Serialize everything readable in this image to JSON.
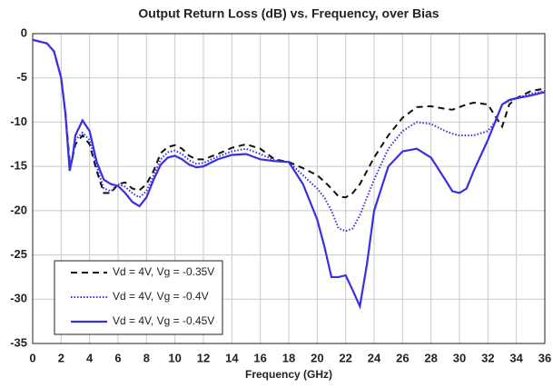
{
  "chart_data": {
    "type": "line",
    "title": "Output Return Loss (dB) vs. Frequency, over Bias",
    "x_label": "Frequency (GHz)",
    "x": [
      0,
      0.5,
      1,
      1.5,
      2,
      2.3,
      2.6,
      2.8,
      3,
      3.5,
      4,
      4.5,
      5,
      5.5,
      6,
      6.5,
      7,
      7.5,
      8,
      8.5,
      9,
      9.5,
      10,
      10.5,
      11,
      11.5,
      12,
      13,
      14,
      15,
      16,
      17,
      18,
      19,
      20,
      20.5,
      21,
      21.5,
      22,
      22.5,
      23,
      23.5,
      24,
      25,
      26,
      27,
      28,
      29,
      29.5,
      30,
      30.5,
      31,
      32,
      32.5,
      33,
      33.5,
      34,
      35,
      36
    ],
    "series": [
      {
        "name": "Vd = 4V, Vg = -0.35V",
        "color": "#111111",
        "dash": "dashed",
        "values": [
          -0.7,
          -0.9,
          -1.1,
          -2,
          -5,
          -9,
          -14.5,
          -14,
          -12.5,
          -11.5,
          -12.5,
          -15.5,
          -18,
          -18,
          -17,
          -16.8,
          -17.5,
          -17.7,
          -17,
          -15.5,
          -13.5,
          -12.8,
          -12.6,
          -13,
          -13.8,
          -14.2,
          -14.2,
          -13.6,
          -12.9,
          -12.5,
          -13,
          -14.2,
          -14.5,
          -15.2,
          -16,
          -16.7,
          -17.5,
          -18.4,
          -18.5,
          -18,
          -17,
          -15.5,
          -14,
          -11.5,
          -9.5,
          -8.3,
          -8.2,
          -8.5,
          -8.6,
          -8.3,
          -8,
          -7.8,
          -8,
          -9.3,
          -10.5,
          -8,
          -7.3,
          -6.5,
          -6.2
        ]
      },
      {
        "name": "Vd = 4V, Vg = -0.4V",
        "color": "#3a2ee0",
        "dash": "dotted",
        "values": [
          -0.7,
          -0.9,
          -1.1,
          -2,
          -5,
          -9,
          -15,
          -14,
          -12,
          -11.2,
          -12,
          -15,
          -17.5,
          -17.8,
          -17,
          -17.3,
          -18,
          -18.5,
          -17.8,
          -16,
          -14.2,
          -13.4,
          -13.2,
          -13.6,
          -14.3,
          -14.7,
          -14.6,
          -13.9,
          -13.3,
          -13,
          -13.6,
          -14.3,
          -14.5,
          -16,
          -17.5,
          -18.5,
          -20,
          -22,
          -22.3,
          -22,
          -20.5,
          -18.5,
          -16.5,
          -13,
          -11,
          -10,
          -10.2,
          -11,
          -11.3,
          -11.5,
          -11.5,
          -11.5,
          -11,
          -10,
          -8,
          -7.6,
          -7.3,
          -6.8,
          -6.5
        ]
      },
      {
        "name": "Vd = 4V, Vg = -0.45V",
        "color": "#3a2ee0",
        "dash": "solid",
        "values": [
          -0.7,
          -0.9,
          -1.1,
          -2,
          -5,
          -9,
          -15.5,
          -14,
          -11.5,
          -9.8,
          -11,
          -14.5,
          -16.5,
          -17,
          -17.2,
          -18,
          -19,
          -19.5,
          -18.5,
          -16.5,
          -14.8,
          -14,
          -13.8,
          -14.2,
          -14.8,
          -15.1,
          -15,
          -14.2,
          -13.7,
          -13.6,
          -14.2,
          -14.4,
          -14.5,
          -17,
          -21,
          -24,
          -27.5,
          -27.5,
          -27.3,
          -29,
          -30.8,
          -26,
          -20,
          -15,
          -13.3,
          -13,
          -14,
          -16.5,
          -17.8,
          -18,
          -17.5,
          -15.5,
          -12,
          -10,
          -8,
          -7.5,
          -7.3,
          -7,
          -6.6
        ]
      }
    ],
    "xlim": [
      0,
      36
    ],
    "xticks": [
      0,
      2,
      4,
      6,
      8,
      10,
      12,
      14,
      16,
      18,
      20,
      22,
      24,
      26,
      28,
      30,
      32,
      34,
      36
    ],
    "ylim": [
      -35,
      0
    ],
    "yticks": [
      0,
      -5,
      -10,
      -15,
      -20,
      -25,
      -30,
      -35
    ],
    "grid": true,
    "legend": "lower left"
  }
}
